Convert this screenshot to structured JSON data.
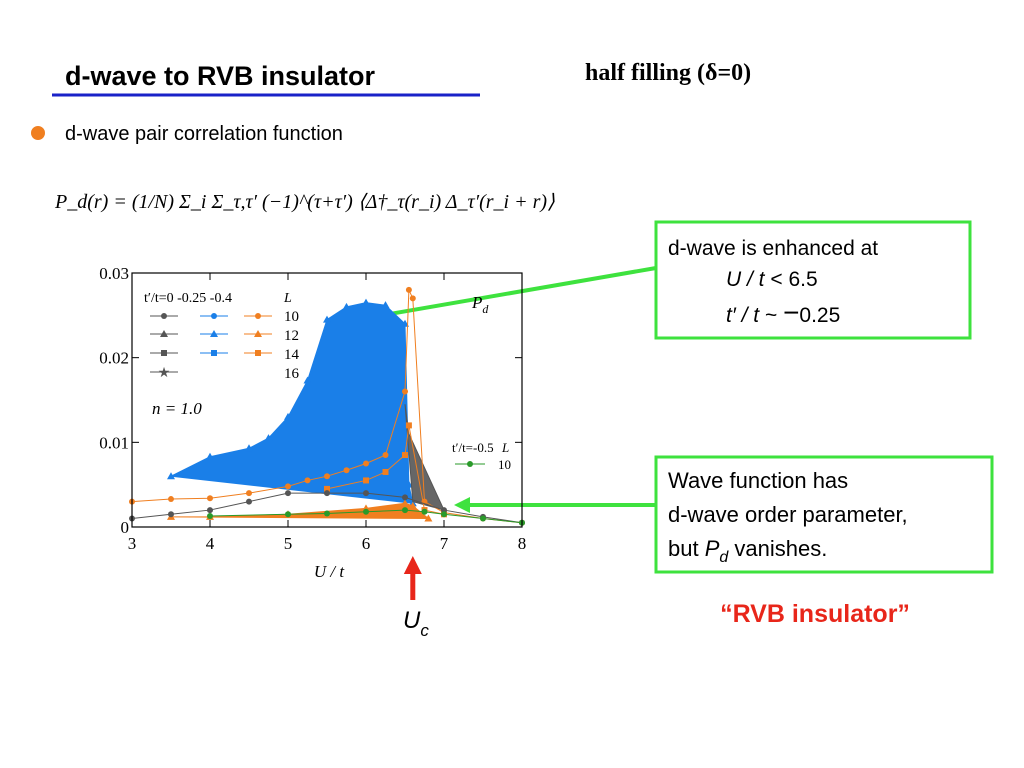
{
  "header": {
    "title": "d-wave  to  RVB insulator",
    "subtitle": "half filling  (δ=0)"
  },
  "bullet": "d-wave pair correlation function",
  "formula": "P_d(r) = (1/N) Σ_i Σ_τ,τ′ (−1)^(τ+τ′) ⟨Δ†_τ(r_i) Δ_τ′(r_i + r)⟩",
  "callouts": [
    {
      "lines": [
        "d-wave is enhanced at",
        [
          "U / t",
          " < 6.5"
        ],
        [
          "t′ / t",
          " ~ ",
          "−",
          "0.25"
        ]
      ]
    },
    {
      "lines": [
        "Wave function has",
        "d-wave order parameter,",
        [
          "but ",
          "P",
          "d",
          " vanishes."
        ]
      ]
    }
  ],
  "rvb_label": "“RVB insulator”",
  "uc_label": {
    "main": "U",
    "sub": "c"
  },
  "chart_data": {
    "type": "line",
    "xlabel": "U / t",
    "annotation": {
      "main": "P",
      "sub": "d"
    },
    "density_label": "n  = 1.0",
    "legend": {
      "header": "t′/t=0  -0.25  -0.4",
      "size_label": "L",
      "rows": [
        "10",
        "12",
        "14",
        "16"
      ]
    },
    "legend2": {
      "header": "t′/t=-0.5",
      "size_label": "L",
      "rows": [
        "10"
      ]
    },
    "xlim": [
      3,
      8
    ],
    "xticks": [
      3,
      4,
      5,
      6,
      7,
      8
    ],
    "ylim": [
      0,
      0.03
    ],
    "yticks": [
      0,
      0.01,
      0.02,
      0.03
    ],
    "arrow_x": 6.6,
    "series": [
      {
        "color": "#1a7fe8",
        "fill": "#1a7fe8",
        "marker": "triangle",
        "x": [
          3.5,
          4,
          4.5,
          4.75,
          5,
          5.25,
          5.5,
          5.75,
          6,
          6.25,
          6.5,
          6.55,
          6.6
        ],
        "values": [
          0.006,
          0.0083,
          0.0093,
          0.0105,
          0.013,
          0.0173,
          0.0245,
          0.026,
          0.0265,
          0.0262,
          0.024,
          0.005,
          0.0028
        ]
      },
      {
        "color": "#555555",
        "fill": "#666666",
        "marker": "none",
        "x": [
          6.5,
          6.55,
          7,
          6.6
        ],
        "values": [
          0.0145,
          0.011,
          0.002,
          0.003
        ]
      },
      {
        "color": "#f07f20",
        "fill": "#f07f20",
        "marker": "triangle",
        "x": [
          3.5,
          4,
          5,
          6,
          6.5,
          6.6,
          6.8
        ],
        "values": [
          0.0012,
          0.0012,
          0.0015,
          0.0022,
          0.0028,
          0.0025,
          0.001
        ]
      },
      {
        "color": "#f07f20",
        "marker": "circle",
        "x": [
          3,
          3.5,
          4,
          4.5,
          5,
          5.25,
          5.5,
          5.75,
          6,
          6.25,
          6.5,
          6.55,
          6.6,
          6.75,
          7,
          7.5,
          8
        ],
        "values": [
          0.003,
          0.0033,
          0.0034,
          0.004,
          0.0048,
          0.0055,
          0.006,
          0.0067,
          0.0075,
          0.0085,
          0.016,
          0.028,
          0.027,
          0.003,
          0.0017,
          0.001,
          0.0005
        ]
      },
      {
        "color": "#f07f20",
        "marker": "square",
        "x": [
          5.5,
          6,
          6.25,
          6.5,
          6.55,
          6.75,
          7
        ],
        "values": [
          0.0045,
          0.0055,
          0.0065,
          0.0085,
          0.012,
          0.002,
          0.0015
        ]
      },
      {
        "color": "#555555",
        "marker": "circle",
        "x": [
          3,
          3.5,
          4,
          4.5,
          5,
          5.5,
          6,
          6.5,
          7,
          7.5,
          8
        ],
        "values": [
          0.001,
          0.0015,
          0.002,
          0.003,
          0.004,
          0.004,
          0.004,
          0.0035,
          0.002,
          0.0012,
          0.0005
        ]
      },
      {
        "color": "#2a9a2a",
        "marker": "circle",
        "x": [
          4,
          5,
          5.5,
          6,
          6.5,
          6.75,
          7,
          7.5,
          8
        ],
        "values": [
          0.0013,
          0.0015,
          0.0016,
          0.0018,
          0.002,
          0.0018,
          0.0015,
          0.001,
          0.0005
        ]
      }
    ]
  }
}
